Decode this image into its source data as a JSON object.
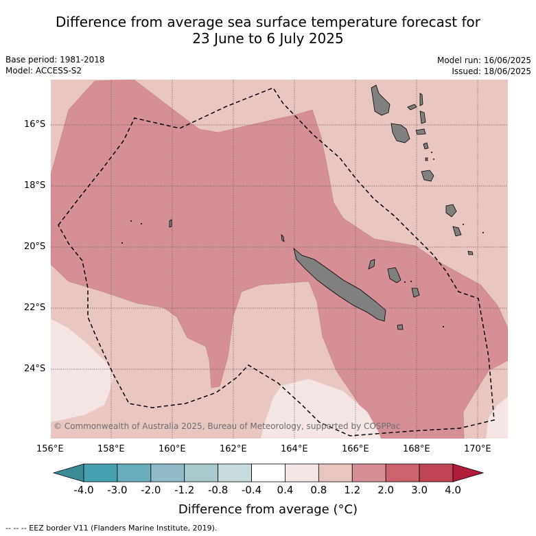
{
  "title_line1": "Difference from average sea surface temperature forecast for",
  "title_line2": "23 June to 6 July 2025",
  "base_period": "Base period: 1981-2018",
  "model": "Model: ACCESS-S2",
  "model_run": "Model run: 16/06/2025",
  "issued": "Issued: 18/06/2025",
  "copyright": "© Commonwealth of Australia 2025, Bureau of Meteorology, supported by COSPPac",
  "lat_labels": [
    "16°S",
    "18°S",
    "20°S",
    "22°S",
    "24°S"
  ],
  "lon_labels": [
    "156°E",
    "158°E",
    "160°E",
    "162°E",
    "164°E",
    "166°E",
    "168°E",
    "170°E"
  ],
  "colorbar": {
    "title": "Difference from average (°C)",
    "ticks": [
      "-4.0",
      "-3.0",
      "-2.0",
      "-1.2",
      "-0.8",
      "-0.4",
      "0.4",
      "0.8",
      "1.2",
      "2.0",
      "3.0",
      "4.0"
    ],
    "colors": [
      "#3f8c99",
      "#45a0b0",
      "#6aadbb",
      "#8ebbc5",
      "#aac9cd",
      "#c9dbdc",
      "#ffffff",
      "#f4e6e4",
      "#e8c6c2",
      "#d68f96",
      "#cb646f",
      "#bf4455",
      "#b31b3b"
    ]
  },
  "footer": "--  --  -- EEZ border V11 (Flanders Marine Institute, 2019)."
}
